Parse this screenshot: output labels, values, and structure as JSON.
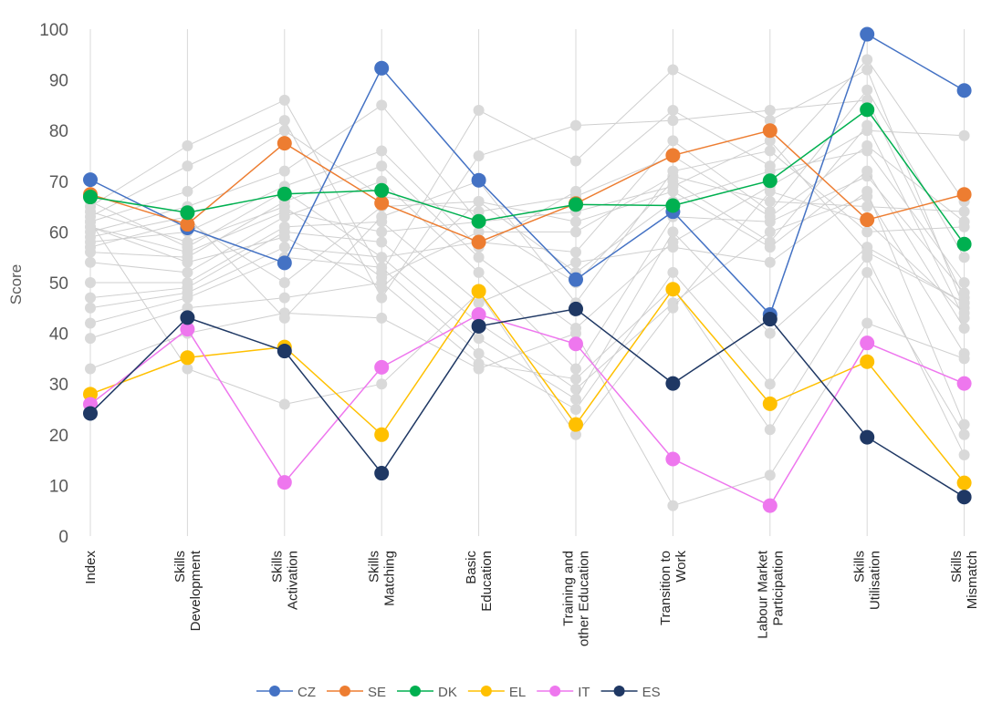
{
  "chart_data": {
    "type": "line",
    "title": "",
    "xlabel": "",
    "ylabel": "Score",
    "ylim": [
      0,
      100
    ],
    "yticks": [
      "0",
      "10",
      "20",
      "30",
      "40",
      "50",
      "60",
      "70",
      "80",
      "90",
      "100"
    ],
    "grid": "vertical",
    "legend_position": "bottom",
    "categories": [
      [
        "Index"
      ],
      [
        "Skills",
        "Development"
      ],
      [
        "Skills",
        "Activation"
      ],
      [
        "Skills",
        "Matching"
      ],
      [
        "Basic",
        "Education"
      ],
      [
        "Training and",
        "other Education"
      ],
      [
        "Transition to",
        "Work"
      ],
      [
        "Labour Market",
        "Participation"
      ],
      [
        "Skills",
        "Utilisation"
      ],
      [
        "Skills",
        "Mismatch"
      ]
    ],
    "series": [
      {
        "name": "CZ",
        "color": "#4472C4",
        "values": [
          70.3,
          60.8,
          53.9,
          92.3,
          70.2,
          50.6,
          64.0,
          43.7,
          99.0,
          87.9
        ]
      },
      {
        "name": "SE",
        "color": "#ED7D31",
        "values": [
          67.4,
          61.5,
          77.5,
          65.7,
          58.0,
          65.6,
          75.1,
          80.0,
          62.4,
          67.4
        ]
      },
      {
        "name": "DK",
        "color": "#00B050",
        "values": [
          66.9,
          63.8,
          67.5,
          68.2,
          62.1,
          65.4,
          65.2,
          70.1,
          84.1,
          57.6
        ]
      },
      {
        "name": "EL",
        "color": "#FFC000",
        "values": [
          28.0,
          35.2,
          37.3,
          20.0,
          48.3,
          22.0,
          48.7,
          26.1,
          34.4,
          10.5
        ]
      },
      {
        "name": "IT",
        "color": "#EE77EE",
        "values": [
          26.0,
          40.8,
          10.6,
          33.3,
          43.7,
          37.9,
          15.2,
          6.0,
          38.1,
          30.1
        ]
      },
      {
        "name": "ES",
        "color": "#1F3864",
        "values": [
          24.2,
          43.1,
          36.5,
          12.4,
          41.4,
          44.8,
          30.1,
          42.8,
          19.5,
          7.7
        ]
      }
    ],
    "background_series": [
      [
        65,
        77,
        86,
        52,
        84,
        74,
        92,
        82,
        92,
        45
      ],
      [
        63,
        73,
        82,
        47,
        75,
        81,
        82,
        84,
        86,
        47
      ],
      [
        62,
        68,
        80,
        67,
        64,
        67,
        75,
        63,
        77,
        62
      ],
      [
        60,
        65,
        72,
        85,
        62,
        50,
        70,
        58,
        81,
        43
      ],
      [
        58,
        60,
        69,
        76,
        57,
        68,
        84,
        73,
        94,
        66
      ],
      [
        56,
        55,
        66,
        73,
        55,
        41,
        58,
        69,
        80,
        79
      ],
      [
        54,
        52,
        63,
        70,
        52,
        33,
        63,
        62,
        71,
        48
      ],
      [
        50,
        50,
        61,
        62,
        46,
        54,
        57,
        54,
        68,
        22
      ],
      [
        47,
        49,
        60,
        58,
        42,
        29,
        46,
        60,
        67,
        36
      ],
      [
        45,
        48,
        57,
        55,
        39,
        27,
        60,
        40,
        57,
        46
      ],
      [
        42,
        47,
        55,
        53,
        36,
        25,
        52,
        30,
        55,
        16
      ],
      [
        39,
        45,
        47,
        50,
        34,
        31,
        49,
        21,
        52,
        20
      ],
      [
        33,
        40,
        44,
        43,
        33,
        40,
        6,
        12,
        42,
        35
      ],
      [
        64,
        58,
        65,
        51,
        60,
        60,
        71,
        66,
        65,
        64
      ],
      [
        61,
        54,
        59,
        49,
        66,
        52,
        66,
        72,
        76,
        50
      ],
      [
        59,
        63,
        43,
        63,
        70,
        46,
        72,
        76,
        60,
        61
      ],
      [
        66,
        57,
        68,
        55,
        58,
        56,
        78,
        64,
        88,
        55
      ],
      [
        62,
        33,
        26,
        30,
        48,
        20,
        45,
        68,
        62,
        44
      ],
      [
        57,
        62,
        50,
        65,
        66,
        62,
        68,
        57,
        72,
        41
      ],
      [
        61,
        56,
        64,
        60,
        62,
        64,
        69,
        78,
        56,
        46
      ]
    ]
  },
  "legend": {
    "items": [
      "CZ",
      "SE",
      "DK",
      "EL",
      "IT",
      "ES"
    ]
  }
}
